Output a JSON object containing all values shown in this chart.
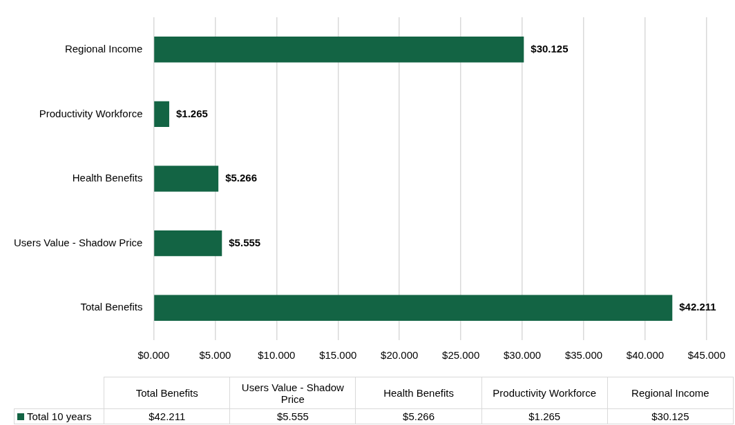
{
  "chart_data": {
    "type": "bar",
    "orientation": "horizontal",
    "categories": [
      "Regional Income",
      "Productivity Workforce",
      "Health Benefits",
      "Users Value - Shadow Price",
      "Total Benefits"
    ],
    "series": [
      {
        "name": "Total 10 years",
        "color": "#136444",
        "values": [
          30.125,
          1.265,
          5.266,
          5.555,
          42.211
        ],
        "value_labels": [
          "$30.125",
          "$1.265",
          "$5.266",
          "$5.555",
          "$42.211"
        ]
      }
    ],
    "xlim": [
      0,
      45
    ],
    "xticks": [
      {
        "value": 0,
        "label": "$0.000"
      },
      {
        "value": 5,
        "label": "$5.000"
      },
      {
        "value": 10,
        "label": "$10.000"
      },
      {
        "value": 15,
        "label": "$15.000"
      },
      {
        "value": 20,
        "label": "$20.000"
      },
      {
        "value": 25,
        "label": "$25.000"
      },
      {
        "value": 30,
        "label": "$30.000"
      },
      {
        "value": 35,
        "label": "$35.000"
      },
      {
        "value": 40,
        "label": "$40.000"
      },
      {
        "value": 45,
        "label": "$45.000"
      }
    ],
    "grid": "x",
    "legend": "bottom"
  }
}
